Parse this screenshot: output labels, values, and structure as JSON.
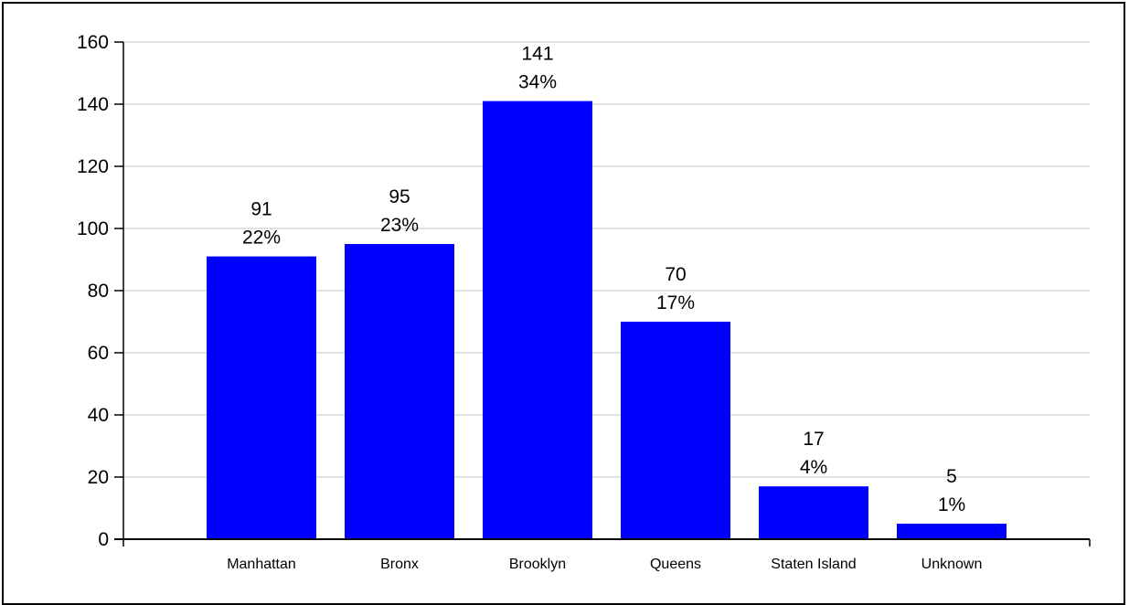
{
  "chart_data": {
    "type": "bar",
    "categories": [
      "Manhattan",
      "Bronx",
      "Brooklyn",
      "Queens",
      "Staten Island",
      "Unknown"
    ],
    "values": [
      91,
      95,
      141,
      70,
      17,
      5
    ],
    "percent_labels": [
      "22%",
      "23%",
      "34%",
      "17%",
      "4%",
      "1%"
    ],
    "ylim": [
      0,
      160
    ],
    "yticks": [
      0,
      20,
      40,
      60,
      80,
      100,
      120,
      140,
      160
    ],
    "title": "",
    "xlabel": "",
    "ylabel": "",
    "grid": true,
    "legend": "none",
    "bar_color": "#0000ff",
    "grid_color": "#d9d9d9"
  }
}
